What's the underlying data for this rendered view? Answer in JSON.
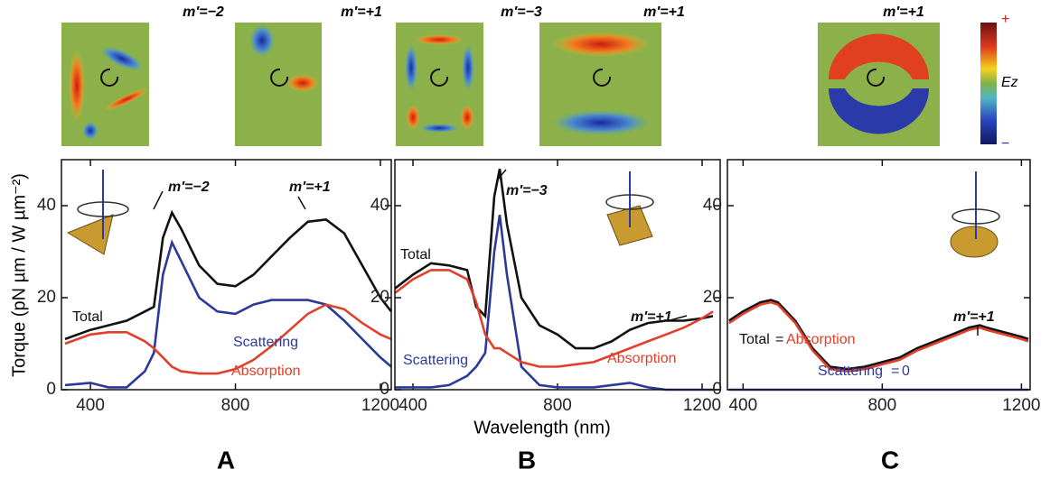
{
  "field_maps": [
    "m′=−2",
    "m′=+1",
    "m′=−3",
    "m′=+1",
    "m′=+1"
  ],
  "colorbar": {
    "max_label": "+",
    "label": "Ez",
    "min_label": "−"
  },
  "chart_data": [
    {
      "type": "line",
      "panel": "A",
      "ylabel": "Torque (pN µm / W µm⁻²)",
      "x": [
        330,
        400,
        450,
        500,
        550,
        575,
        600,
        625,
        650,
        700,
        750,
        800,
        850,
        900,
        950,
        1000,
        1050,
        1100,
        1150,
        1200,
        1230
      ],
      "series": [
        {
          "name": "Total",
          "color": "#111111",
          "values": [
            11,
            13,
            14,
            15,
            17,
            18,
            33,
            38.5,
            35,
            27,
            23,
            22.5,
            25,
            29,
            33,
            36.5,
            37,
            34,
            27,
            20,
            17
          ]
        },
        {
          "name": "Scattering",
          "color": "#2b3a9a",
          "values": [
            1,
            1.5,
            0.5,
            0.5,
            4,
            8,
            25,
            32,
            28,
            20,
            17,
            16.5,
            18.5,
            19.5,
            19.5,
            19.5,
            18.5,
            15,
            11,
            7,
            5
          ]
        },
        {
          "name": "Absorption",
          "color": "#e0402a",
          "values": [
            10,
            12,
            12.5,
            12.5,
            10.5,
            9,
            7,
            5,
            4,
            3.5,
            3.5,
            4.5,
            6.5,
            9.5,
            13,
            16.5,
            18.5,
            17.5,
            14.5,
            12,
            11
          ]
        }
      ],
      "annotations": [
        {
          "text": "m′=−2",
          "color": "#111111"
        },
        {
          "text": "m′=+1",
          "color": "#111111"
        },
        {
          "text": "Total",
          "color": "#111111"
        },
        {
          "text": "Scattering",
          "color": "#2b3a9a"
        },
        {
          "text": "Absorption",
          "color": "#e0402a"
        }
      ],
      "xlim": [
        320,
        1230
      ],
      "ylim": [
        0,
        50
      ],
      "xticks": [
        400,
        800,
        1200
      ],
      "yticks": [
        0,
        20,
        40
      ]
    },
    {
      "type": "line",
      "panel": "B",
      "xlabel": "Wavelength (nm)",
      "x": [
        350,
        400,
        450,
        500,
        550,
        575,
        600,
        625,
        640,
        660,
        700,
        750,
        800,
        850,
        900,
        950,
        1000,
        1050,
        1100,
        1150,
        1200,
        1230
      ],
      "series": [
        {
          "name": "Total",
          "color": "#111111",
          "values": [
            22,
            25,
            27.5,
            27,
            26,
            18,
            16,
            42,
            48,
            36,
            20,
            14,
            12,
            9,
            9,
            10.5,
            13,
            14.5,
            15,
            15,
            15.5,
            16
          ]
        },
        {
          "name": "Scattering",
          "color": "#2b3a9a",
          "values": [
            0.5,
            0.5,
            0.5,
            1,
            3,
            5,
            8,
            30,
            38,
            25,
            5,
            1,
            0.5,
            0.5,
            0.5,
            1,
            1.5,
            0.5,
            0,
            0,
            0,
            0
          ]
        },
        {
          "name": "Absorption",
          "color": "#e0402a",
          "values": [
            21,
            24,
            26,
            26,
            24,
            19,
            12,
            9,
            9,
            8,
            6,
            5,
            5,
            5.5,
            6,
            7.5,
            9,
            10.5,
            12,
            13.5,
            15.5,
            17
          ]
        }
      ],
      "annotations": [
        {
          "text": "m′=−3",
          "color": "#111111"
        },
        {
          "text": "Total",
          "color": "#111111"
        },
        {
          "text": "Scattering",
          "color": "#2b3a9a"
        },
        {
          "text": "Absorption",
          "color": "#e0402a"
        },
        {
          "text": "m′=+1",
          "color": "#111111"
        }
      ],
      "xlim": [
        350,
        1250
      ],
      "ylim": [
        0,
        50
      ],
      "xticks": [
        400,
        800,
        1200
      ],
      "yticks": [
        0,
        20,
        40
      ]
    },
    {
      "type": "line",
      "panel": "C",
      "x": [
        360,
        400,
        450,
        480,
        500,
        550,
        600,
        650,
        700,
        750,
        800,
        850,
        900,
        950,
        1000,
        1050,
        1080,
        1100,
        1150,
        1200,
        1220
      ],
      "series": [
        {
          "name": "Total",
          "color": "#111111",
          "values": [
            15,
            17,
            19,
            19.5,
            19,
            15,
            9,
            5,
            4.5,
            5,
            6,
            7,
            9,
            10.5,
            12,
            13.5,
            14,
            13.5,
            12.5,
            11.5,
            11
          ]
        },
        {
          "name": "Absorption",
          "color": "#e0402a",
          "values": [
            14.5,
            16.5,
            18.5,
            19,
            18.5,
            14.5,
            8.5,
            4.5,
            4,
            4.5,
            5.5,
            6.5,
            8.5,
            10,
            11.5,
            13,
            13.5,
            13,
            12,
            11,
            10.5
          ]
        },
        {
          "name": "Scattering",
          "color": "#2b3a9a",
          "values": [
            0,
            0,
            0,
            0,
            0,
            0,
            0,
            0,
            0,
            0,
            0,
            0,
            0,
            0,
            0,
            0,
            0,
            0,
            0,
            0,
            0
          ]
        }
      ],
      "annotations": [
        {
          "text": "Total",
          "color": "#111111"
        },
        {
          "text": "=",
          "color": "#111111"
        },
        {
          "text": "Absorption",
          "color": "#e0402a"
        },
        {
          "text": "Scattering",
          "color": "#2b3a9a"
        },
        {
          "text": "=",
          "color": "#2b3a9a"
        },
        {
          "text": "0",
          "color": "#2b3a9a"
        },
        {
          "text": "m′=+1",
          "color": "#111111"
        }
      ],
      "xlim": [
        355,
        1225
      ],
      "ylim": [
        0,
        50
      ],
      "xticks": [
        400,
        800,
        1200
      ],
      "yticks": [
        0,
        20,
        40
      ]
    }
  ]
}
